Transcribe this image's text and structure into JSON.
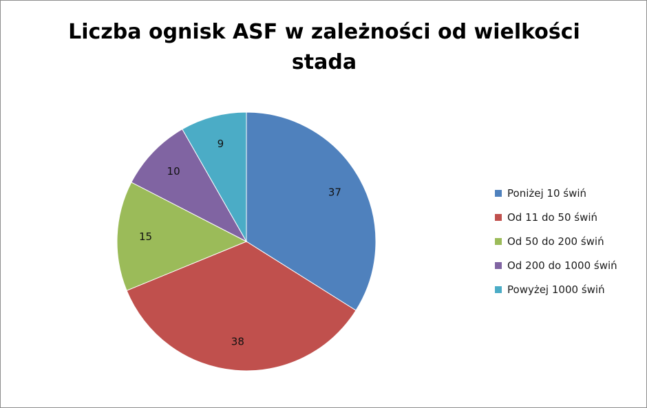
{
  "chart_data": {
    "type": "pie",
    "title": "Liczba ognisk ASF w zależności od wielkości stada",
    "title_lines": [
      "Liczba ognisk ASF w zależności od wielkości",
      "stada"
    ],
    "legend_placement": "right",
    "slices": [
      {
        "label": "Poniżej 10 świń",
        "value": 37,
        "color": "#4f81bd"
      },
      {
        "label": "Od 11 do 50 świń",
        "value": 38,
        "color": "#c0504d"
      },
      {
        "label": "Od 50 do 200 świń",
        "value": 15,
        "color": "#9bbb59"
      },
      {
        "label": "Od 200 do 1000 świń",
        "value": 10,
        "color": "#8064a2"
      },
      {
        "label": "Powyżej 1000 świń",
        "value": 9,
        "color": "#4bacc6"
      }
    ]
  }
}
